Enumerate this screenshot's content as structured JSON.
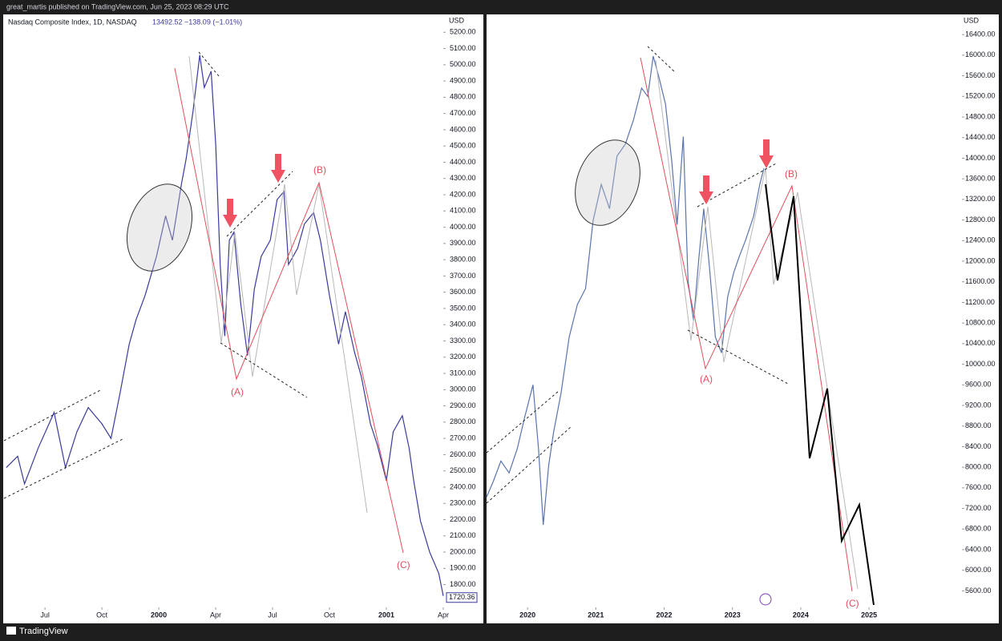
{
  "header": {
    "publisher": "great_martis published on TradingView.com, Jun 25, 2023 08:29 UTC"
  },
  "footer": {
    "logo": "TradingView"
  },
  "chart_data": [
    {
      "type": "line",
      "title": "Nasdaq Composite Index, 1D, NASDAQ",
      "quote": "13492.52  −138.09 (−1.01%)",
      "y_axis_label": "USD",
      "color": "#3b3a9c",
      "grid": false,
      "last_price": 1720.36,
      "annotations": [
        "(A)",
        "(B)",
        "(C)"
      ],
      "x": [
        1999.33,
        1999.38,
        1999.41,
        1999.47,
        1999.54,
        1999.59,
        1999.64,
        1999.69,
        1999.75,
        1999.79,
        1999.83,
        1999.87,
        1999.9,
        1999.94,
        1999.99,
        2000.03,
        2000.06,
        2000.1,
        2000.12,
        2000.15,
        2000.18,
        2000.2,
        2000.23,
        2000.25,
        2000.27,
        2000.29,
        2000.31,
        2000.33,
        2000.36,
        2000.39,
        2000.42,
        2000.45,
        2000.49,
        2000.52,
        2000.55,
        2000.57,
        2000.61,
        2000.64,
        2000.68,
        2000.71,
        2000.75,
        2000.79,
        2000.82,
        2000.86,
        2000.89,
        2000.93,
        2000.96,
        2001.0,
        2001.03,
        2001.07,
        2001.1,
        2001.12,
        2001.15,
        2001.19,
        2001.23,
        2001.25
      ],
      "values": [
        2520,
        2590,
        2420,
        2640,
        2860,
        2520,
        2740,
        2890,
        2790,
        2700,
        2980,
        3280,
        3430,
        3580,
        3820,
        4070,
        3920,
        4270,
        4420,
        4710,
        5060,
        4860,
        4960,
        4510,
        3770,
        3330,
        3920,
        3970,
        3530,
        3210,
        3620,
        3820,
        3920,
        4170,
        4220,
        3770,
        3870,
        4020,
        4090,
        3920,
        3580,
        3280,
        3480,
        3230,
        3080,
        2790,
        2660,
        2440,
        2740,
        2840,
        2640,
        2440,
        2190,
        2000,
        1870,
        1730
      ],
      "xlim": [
        1999.32,
        2001.25
      ],
      "xticks": [
        {
          "value": 1999.5,
          "label": "Jul"
        },
        {
          "value": 1999.75,
          "label": "Oct"
        },
        2000,
        {
          "value": 2000.25,
          "label": "Apr"
        },
        {
          "value": 2000.5,
          "label": "Jul"
        },
        {
          "value": 2000.75,
          "label": "Oct"
        },
        2001,
        {
          "value": 2001.25,
          "label": "Apr"
        }
      ],
      "ylim": [
        1660,
        5300
      ],
      "yticks": [
        {
          "value": 1800,
          "label": "1800.00"
        },
        {
          "value": 1900,
          "label": "1900.00"
        },
        {
          "value": 2000,
          "label": "2000.00"
        },
        {
          "value": 2100,
          "label": "2100.00"
        },
        {
          "value": 2200,
          "label": "2200.00"
        },
        {
          "value": 2300,
          "label": "2300.00"
        },
        {
          "value": 2400,
          "label": "2400.00"
        },
        {
          "value": 2500,
          "label": "2500.00"
        },
        {
          "value": 2600,
          "label": "2600.00"
        },
        {
          "value": 2700,
          "label": "2700.00"
        },
        {
          "value": 2800,
          "label": "2800.00"
        },
        {
          "value": 2900,
          "label": "2900.00"
        },
        {
          "value": 3000,
          "label": "3000.00"
        },
        {
          "value": 3100,
          "label": "3100.00"
        },
        {
          "value": 3200,
          "label": "3200.00"
        },
        {
          "value": 3300,
          "label": "3300.00"
        },
        {
          "value": 3400,
          "label": "3400.00"
        },
        {
          "value": 3500,
          "label": "3500.00"
        },
        {
          "value": 3600,
          "label": "3600.00"
        },
        {
          "value": 3700,
          "label": "3700.00"
        },
        {
          "value": 3800,
          "label": "3800.00"
        },
        {
          "value": 3900,
          "label": "3900.00"
        },
        {
          "value": 4000,
          "label": "4000.00"
        },
        {
          "value": 4100,
          "label": "4100.00"
        },
        {
          "value": 4200,
          "label": "4200.00"
        },
        {
          "value": 4300,
          "label": "4300.00"
        },
        {
          "value": 4400,
          "label": "4400.00"
        },
        {
          "value": 4500,
          "label": "4500.00"
        },
        {
          "value": 4600,
          "label": "4600.00"
        },
        {
          "value": 4700,
          "label": "4700.00"
        },
        {
          "value": 4800,
          "label": "4800.00"
        },
        {
          "value": 4900,
          "label": "4900.00"
        },
        {
          "value": 5000,
          "label": "5000.00"
        },
        {
          "value": 5100,
          "label": "5100.00"
        },
        {
          "value": 5200,
          "label": "5200.00"
        }
      ]
    },
    {
      "type": "line",
      "y_axis_label": "USD",
      "color": "#5a74ae",
      "grid": false,
      "annotations": [
        "(A)",
        "(B)",
        "(C)"
      ],
      "x": [
        2019.4,
        2019.5,
        2019.61,
        2019.73,
        2019.85,
        2019.96,
        2020.08,
        2020.16,
        2020.23,
        2020.31,
        2020.38,
        2020.49,
        2020.61,
        2020.73,
        2020.85,
        2020.96,
        2021.08,
        2021.2,
        2021.31,
        2021.43,
        2021.55,
        2021.67,
        2021.76,
        2021.84,
        2021.92,
        2022.02,
        2022.11,
        2022.19,
        2022.28,
        2022.35,
        2022.43,
        2022.51,
        2022.58,
        2022.66,
        2022.75,
        2022.84,
        2022.93,
        2023.02,
        2023.1,
        2023.19,
        2023.31,
        2023.4,
        2023.46
      ],
      "values": [
        7420,
        7730,
        8120,
        7890,
        8360,
        8980,
        9600,
        8360,
        6880,
        8040,
        8670,
        9440,
        10530,
        11160,
        11470,
        12790,
        13490,
        13020,
        14040,
        14270,
        14740,
        15360,
        15200,
        15980,
        15590,
        15050,
        13960,
        12710,
        14420,
        11620,
        10850,
        12090,
        13020,
        11930,
        10530,
        10220,
        11310,
        11780,
        12090,
        12400,
        12870,
        13490,
        13800
      ],
      "xlim": [
        2019.4,
        2026.36
      ],
      "xticks": [
        2020,
        2021,
        2022,
        2023,
        2024,
        2025
      ],
      "ylim": [
        5280,
        16760
      ],
      "yticks": [
        {
          "value": 5600,
          "label": "5600.00"
        },
        {
          "value": 6000,
          "label": "6000.00"
        },
        {
          "value": 6400,
          "label": "6400.00"
        },
        {
          "value": 6800,
          "label": "6800.00"
        },
        {
          "value": 7200,
          "label": "7200.00"
        },
        {
          "value": 7600,
          "label": "7600.00"
        },
        {
          "value": 8000,
          "label": "8000.00"
        },
        {
          "value": 8400,
          "label": "8400.00"
        },
        {
          "value": 8800,
          "label": "8800.00"
        },
        {
          "value": 9200,
          "label": "9200.00"
        },
        {
          "value": 9600,
          "label": "9600.00"
        },
        {
          "value": 10000,
          "label": "10000.00"
        },
        {
          "value": 10400,
          "label": "10400.00"
        },
        {
          "value": 10800,
          "label": "10800.00"
        },
        {
          "value": 11200,
          "label": "11200.00"
        },
        {
          "value": 11600,
          "label": "11600.00"
        },
        {
          "value": 12000,
          "label": "12000.00"
        },
        {
          "value": 12400,
          "label": "12400.00"
        },
        {
          "value": 12800,
          "label": "12800.00"
        },
        {
          "value": 13200,
          "label": "13200.00"
        },
        {
          "value": 13600,
          "label": "13600.00"
        },
        {
          "value": 14000,
          "label": "14000.00"
        },
        {
          "value": 14400,
          "label": "14400.00"
        },
        {
          "value": 14800,
          "label": "14800.00"
        },
        {
          "value": 15200,
          "label": "15200.00"
        },
        {
          "value": 15600,
          "label": "15600.00"
        },
        {
          "value": 16000,
          "label": "16000.00"
        },
        {
          "value": 16400,
          "label": "16400.00"
        }
      ]
    }
  ]
}
